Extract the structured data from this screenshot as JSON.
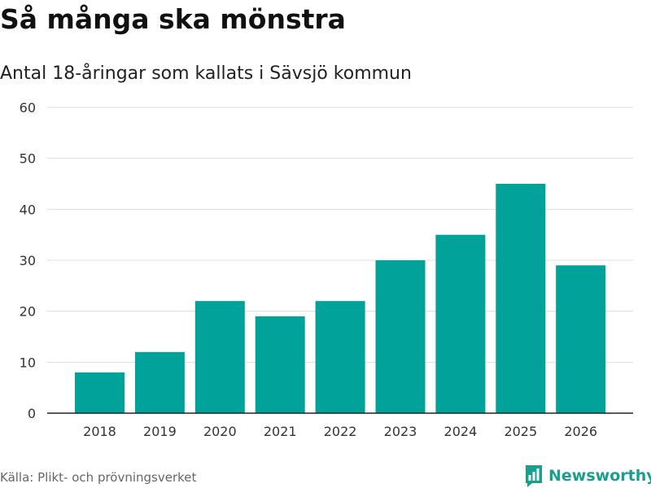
{
  "header": {
    "title": "Så många ska mönstra",
    "subtitle": "Antal 18-åringar som kallats i Sävsjö kommun"
  },
  "footer": {
    "source": "Källa: Plikt- och prövningsverket",
    "brand": "Newsworthy"
  },
  "colors": {
    "bar": "#00a29a",
    "grid": "#dddddd",
    "axis": "#222222",
    "brand": "#1a9f8e"
  },
  "chart_data": {
    "type": "bar",
    "title": "Så många ska mönstra",
    "subtitle": "Antal 18-åringar som kallats i Sävsjö kommun",
    "xlabel": "",
    "ylabel": "",
    "categories": [
      "2018",
      "2019",
      "2020",
      "2021",
      "2022",
      "2023",
      "2024",
      "2025",
      "2026"
    ],
    "values": [
      8,
      12,
      22,
      19,
      22,
      30,
      35,
      45,
      29
    ],
    "ylim": [
      0,
      60
    ],
    "yticks": [
      0,
      10,
      20,
      30,
      40,
      50,
      60
    ],
    "grid": true,
    "legend": "none"
  }
}
